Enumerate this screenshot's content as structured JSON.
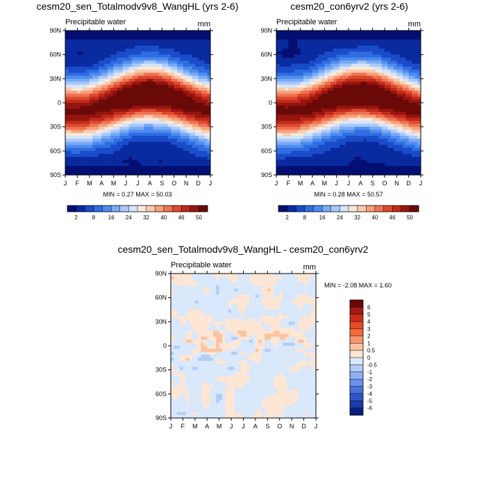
{
  "chart_data": [
    {
      "type": "heatmap",
      "title": "cesm20_sen_Totalmodv9v8_WangHL (yrs 2-6)",
      "left_string": "Precipitable water",
      "units": "mm",
      "x_ticks": [
        "J",
        "F",
        "M",
        "A",
        "M",
        "J",
        "J",
        "A",
        "S",
        "O",
        "N",
        "D",
        "J"
      ],
      "y_ticks": [
        "90N",
        "60N",
        "30N",
        "0",
        "30S",
        "60S",
        "90S"
      ],
      "lat_range": [
        -90,
        90
      ],
      "stat_text": "MIN =   0.27 MAX =  50.03",
      "min": 0.27,
      "max": 50.03,
      "colorbar_labels": [
        "2",
        "8",
        "16",
        "24",
        "32",
        "40",
        "46",
        "50"
      ],
      "colorbar_orientation": "horizontal"
    },
    {
      "type": "heatmap",
      "title": "cesm20_con6yrv2 (yrs 2-6)",
      "left_string": "Precipitable water",
      "units": "mm",
      "x_ticks": [
        "J",
        "F",
        "M",
        "A",
        "M",
        "J",
        "J",
        "A",
        "S",
        "O",
        "N",
        "D",
        "J"
      ],
      "y_ticks": [
        "90N",
        "60N",
        "30N",
        "0",
        "30S",
        "60S",
        "90S"
      ],
      "lat_range": [
        -90,
        90
      ],
      "stat_text": "MIN =   0.28 MAX =  50.57",
      "min": 0.28,
      "max": 50.57,
      "colorbar_labels": [
        "2",
        "8",
        "16",
        "24",
        "32",
        "40",
        "46",
        "50"
      ],
      "colorbar_orientation": "horizontal"
    },
    {
      "type": "heatmap",
      "title": "cesm20_sen_Totalmodv9v8_WangHL - cesm20_con6yrv2",
      "left_string": "Precipitable water",
      "units": "mm",
      "x_ticks": [
        "J",
        "F",
        "M",
        "A",
        "M",
        "J",
        "J",
        "A",
        "S",
        "O",
        "N",
        "D",
        "J"
      ],
      "y_ticks": [
        "90N",
        "60N",
        "30N",
        "0",
        "30S",
        "60S",
        "90S"
      ],
      "lat_range": [
        -90,
        90
      ],
      "stat_text": "MIN =  -2.08 MAX =   1.60",
      "min": -2.08,
      "max": 1.6,
      "colorbar_labels": [
        "6",
        "5",
        "4",
        "3",
        "2",
        "1",
        "0.5",
        "0",
        "-0.5",
        "-1",
        "-2",
        "-3",
        "-4",
        "-5",
        "-6"
      ],
      "colorbar_orientation": "vertical"
    }
  ],
  "colors": {
    "abs_scale": [
      "#040f72",
      "#0a2aa0",
      "#1a4cc9",
      "#2f6de0",
      "#4d8cf0",
      "#7aaaf5",
      "#a9c8fa",
      "#d4e4fb",
      "#fbe8d8",
      "#fbc9ab",
      "#f7a07c",
      "#ef7352",
      "#dc4a30",
      "#c22a1a",
      "#961510",
      "#6a0a08"
    ],
    "diff_scale": [
      "#6a0a08",
      "#a51a10",
      "#cc2d1a",
      "#e64a26",
      "#f46a3d",
      "#f9956b",
      "#fcc3a0",
      "#fde6d4",
      "#d9e8fb",
      "#b2cdf6",
      "#8db0f2",
      "#6a92ec",
      "#4873de",
      "#2d55c8",
      "#1c3ba8",
      "#0a1f80"
    ]
  }
}
